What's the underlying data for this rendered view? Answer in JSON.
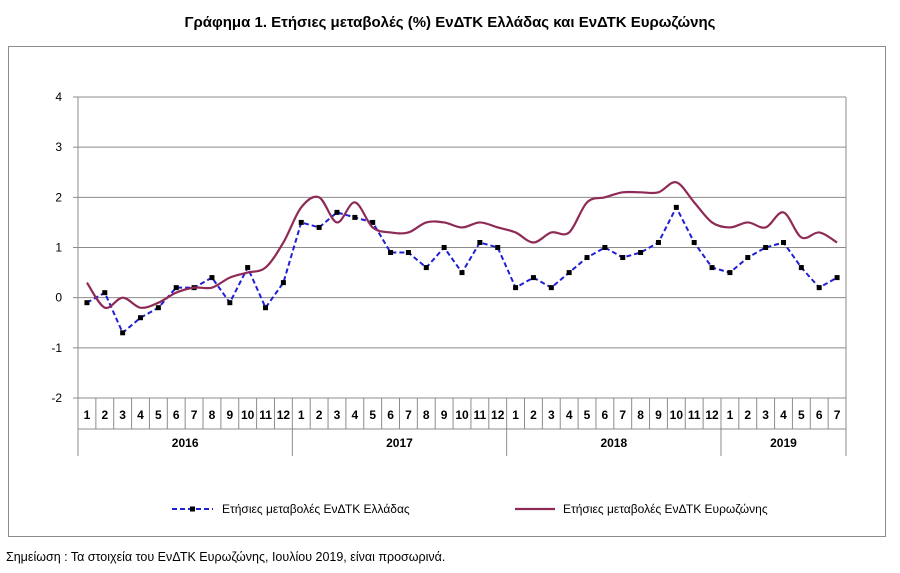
{
  "title": "Γράφημα 1. Ετήσιες μεταβολές (%) ΕνΔΤΚ Ελλάδας και ΕνΔΤΚ Ευρωζώνης",
  "note": "Σημείωση :  Τα στοιχεία του ΕνΔΤΚ Ευρωζώνης, Ιουλίου 2019, είναι προσωρινά.",
  "chart_data": {
    "type": "line",
    "ylim": [
      -2,
      4
    ],
    "yticks": [
      -2,
      -1,
      0,
      1,
      2,
      3,
      4
    ],
    "grid": true,
    "legend_position": "bottom",
    "years": [
      {
        "label": "2016",
        "months": 12
      },
      {
        "label": "2017",
        "months": 12
      },
      {
        "label": "2018",
        "months": 12
      },
      {
        "label": "2019",
        "months": 7
      }
    ],
    "categories": [
      "1",
      "2",
      "3",
      "4",
      "5",
      "6",
      "7",
      "8",
      "9",
      "10",
      "11",
      "12",
      "1",
      "2",
      "3",
      "4",
      "5",
      "6",
      "7",
      "8",
      "9",
      "10",
      "11",
      "12",
      "1",
      "2",
      "3",
      "4",
      "5",
      "6",
      "7",
      "8",
      "9",
      "10",
      "11",
      "12",
      "1",
      "2",
      "3",
      "4",
      "5",
      "6",
      "7"
    ],
    "series": [
      {
        "name": "Ετήσιες μεταβολές ΕνΔΤΚ Ελλάδας",
        "color": "#1f1fd6",
        "style": "dashed-markers",
        "values": [
          -0.1,
          0.1,
          -0.7,
          -0.4,
          -0.2,
          0.2,
          0.2,
          0.4,
          -0.1,
          0.6,
          -0.2,
          0.3,
          1.5,
          1.4,
          1.7,
          1.6,
          1.5,
          0.9,
          0.9,
          0.6,
          1.0,
          0.5,
          1.1,
          1.0,
          0.2,
          0.4,
          0.2,
          0.5,
          0.8,
          1.0,
          0.8,
          0.9,
          1.1,
          1.8,
          1.1,
          0.6,
          0.5,
          0.8,
          1.0,
          1.1,
          0.6,
          0.2,
          0.4
        ]
      },
      {
        "name": "Ετήσιες μεταβολές ΕνΔΤΚ Ευρωζώνης",
        "color": "#8e2a56",
        "style": "solid",
        "values": [
          0.3,
          -0.2,
          0.0,
          -0.2,
          -0.1,
          0.1,
          0.2,
          0.2,
          0.4,
          0.5,
          0.6,
          1.1,
          1.8,
          2.0,
          1.5,
          1.9,
          1.4,
          1.3,
          1.3,
          1.5,
          1.5,
          1.4,
          1.5,
          1.4,
          1.3,
          1.1,
          1.3,
          1.3,
          1.9,
          2.0,
          2.1,
          2.1,
          2.1,
          2.3,
          1.9,
          1.5,
          1.4,
          1.5,
          1.4,
          1.7,
          1.2,
          1.3,
          1.1
        ]
      }
    ]
  }
}
